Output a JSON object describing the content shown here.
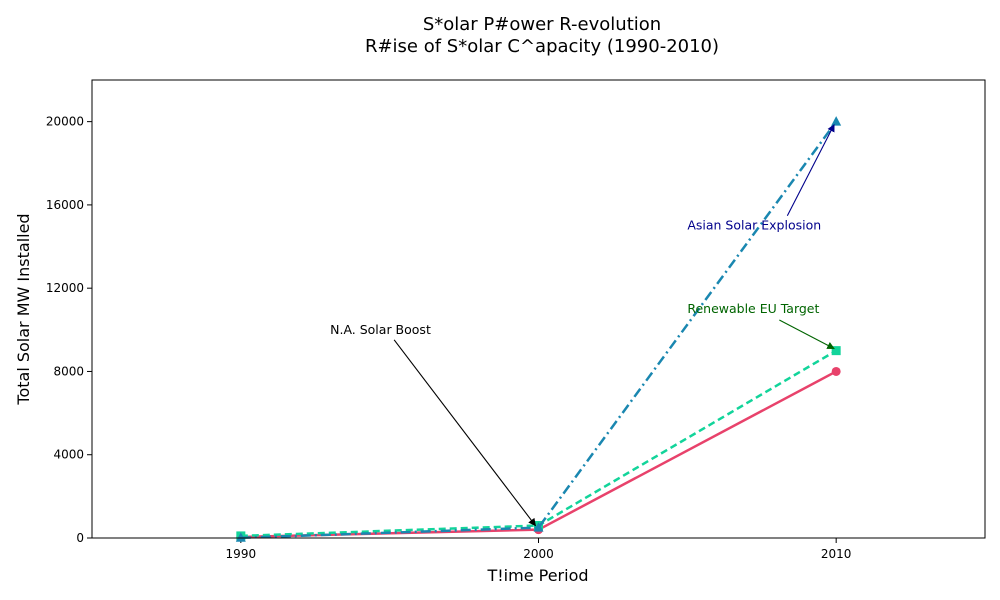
{
  "chart_data": {
    "type": "line",
    "title": "S*olar P#ower R-evolution",
    "subtitle": "R#ise of S*olar C^apacity (1990-2010)",
    "xlabel": "T!ime Period",
    "ylabel": "Total Solar MW Installed",
    "xlim": [
      1985,
      2015
    ],
    "ylim": [
      0,
      22000
    ],
    "x_ticks": [
      1990,
      2000,
      2010
    ],
    "y_ticks": [
      0,
      4000,
      8000,
      12000,
      16000,
      20000
    ],
    "x": [
      1990,
      2000,
      2010
    ],
    "grid": false,
    "series": [
      {
        "values": [
          50,
          400,
          8000
        ],
        "color": "#e8426b",
        "line_style": "solid",
        "marker": "circle"
      },
      {
        "values": [
          100,
          600,
          9000
        ],
        "color": "#12d49a",
        "line_style": "dashed",
        "marker": "square"
      },
      {
        "values": [
          10,
          500,
          20000
        ],
        "color": "#1a87b0",
        "line_style": "dash-dot",
        "marker": "triangle"
      }
    ],
    "annotations": [
      {
        "text": "N.A. Solar Boost",
        "text_at": [
          1993,
          10000
        ],
        "point": [
          2000,
          400
        ],
        "color": "#000000"
      },
      {
        "text": "Asian Solar Explosion",
        "text_at": [
          2005,
          15000
        ],
        "point": [
          2010,
          20000
        ],
        "color": "#00008b"
      },
      {
        "text": "Renewable EU Target",
        "text_at": [
          2005,
          11000
        ],
        "point": [
          2010,
          9000
        ],
        "color": "#006400"
      }
    ]
  }
}
